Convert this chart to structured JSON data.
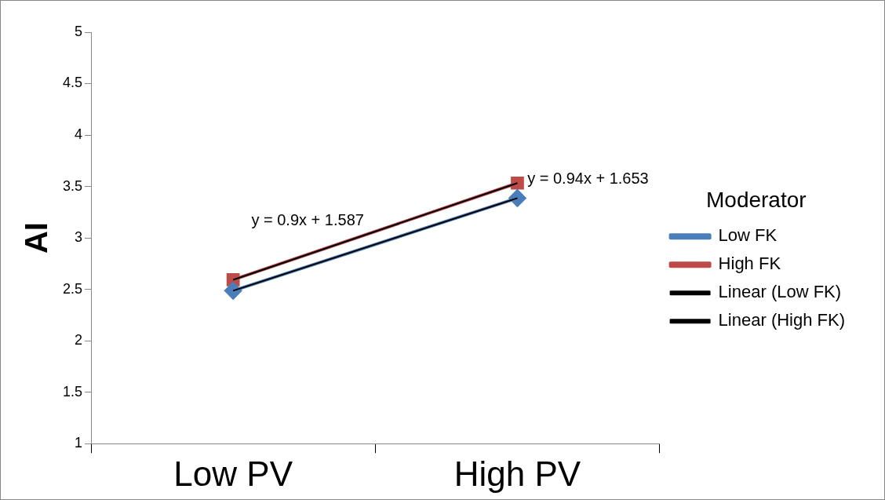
{
  "chart_data": {
    "type": "line",
    "ylabel": "AI",
    "legend_title": "Moderator",
    "categories": [
      "Low PV",
      "High PV"
    ],
    "series": [
      {
        "name": "Low FK",
        "color": "#4a7ebb",
        "values": [
          2.487,
          3.387
        ],
        "marker": "diamond"
      },
      {
        "name": "High FK",
        "color": "#be4b48",
        "values": [
          2.593,
          3.533
        ],
        "marker": "square"
      },
      {
        "name": "Linear (Low FK)",
        "color": "#000000",
        "type": "line",
        "values": [
          2.487,
          3.387
        ],
        "marker": "none"
      },
      {
        "name": "Linear (High FK)",
        "color": "#000000",
        "type": "line",
        "values": [
          2.593,
          3.533
        ],
        "marker": "none"
      }
    ],
    "annotations": [
      "y = 0.9x + 1.587",
      "y = 0.94x + 1.653"
    ],
    "ylim": [
      1,
      5
    ],
    "yticks": [
      1,
      1.5,
      2,
      2.5,
      3,
      3.5,
      4,
      4.5,
      5
    ],
    "grid": false,
    "legend": "right"
  }
}
